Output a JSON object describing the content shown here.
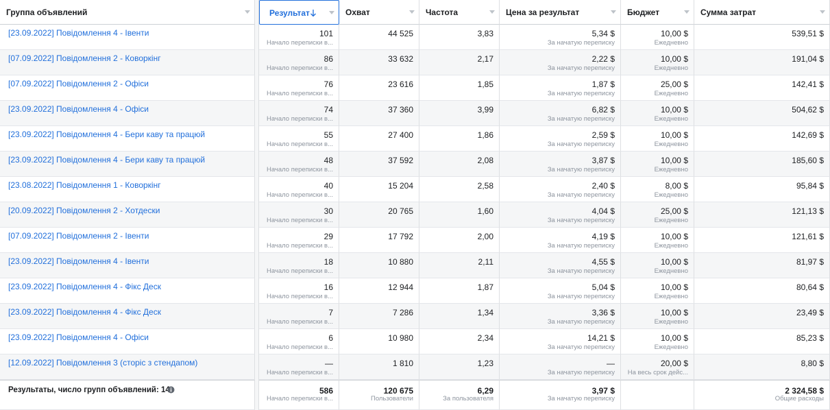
{
  "header": {
    "columns": [
      "Группа объявлений",
      "Результат",
      "Охват",
      "Частота",
      "Цена за результат",
      "Бюджет",
      "Сумма затрат"
    ]
  },
  "table": {
    "rows": [
      {
        "name": "[23.09.2022] Повідомлення 4 - Івенти",
        "result": {
          "main": "101",
          "sub": "Начало переписки в..."
        },
        "reach": "44 525",
        "frequency": "3,83",
        "cost": {
          "main": "5,34 $",
          "sub": "За начатую переписку"
        },
        "budget": {
          "main": "10,00 $",
          "sub": "Ежедневно"
        },
        "spend": "539,51 $"
      },
      {
        "name": "[07.09.2022] Повідомлення 2 - Коворкінг",
        "result": {
          "main": "86",
          "sub": "Начало переписки в..."
        },
        "reach": "33 632",
        "frequency": "2,17",
        "cost": {
          "main": "2,22 $",
          "sub": "За начатую переписку"
        },
        "budget": {
          "main": "10,00 $",
          "sub": "Ежедневно"
        },
        "spend": "191,04 $"
      },
      {
        "name": "[07.09.2022] Повідомлення 2 - Офіси",
        "result": {
          "main": "76",
          "sub": "Начало переписки в..."
        },
        "reach": "23 616",
        "frequency": "1,85",
        "cost": {
          "main": "1,87 $",
          "sub": "За начатую переписку"
        },
        "budget": {
          "main": "25,00 $",
          "sub": "Ежедневно"
        },
        "spend": "142,41 $"
      },
      {
        "name": "[23.09.2022] Повідомлення 4 - Офіси",
        "result": {
          "main": "74",
          "sub": "Начало переписки в..."
        },
        "reach": "37 360",
        "frequency": "3,99",
        "cost": {
          "main": "6,82 $",
          "sub": "За начатую переписку"
        },
        "budget": {
          "main": "10,00 $",
          "sub": "Ежедневно"
        },
        "spend": "504,62 $"
      },
      {
        "name": "[23.09.2022] Повідомлення 4 - Бери каву та працюй",
        "result": {
          "main": "55",
          "sub": "Начало переписки в..."
        },
        "reach": "27 400",
        "frequency": "1,86",
        "cost": {
          "main": "2,59 $",
          "sub": "За начатую переписку"
        },
        "budget": {
          "main": "10,00 $",
          "sub": "Ежедневно"
        },
        "spend": "142,69 $"
      },
      {
        "name": "[23.09.2022] Повідомлення 4 - Бери каву та працюй",
        "result": {
          "main": "48",
          "sub": "Начало переписки в..."
        },
        "reach": "37 592",
        "frequency": "2,08",
        "cost": {
          "main": "3,87 $",
          "sub": "За начатую переписку"
        },
        "budget": {
          "main": "10,00 $",
          "sub": "Ежедневно"
        },
        "spend": "185,60 $"
      },
      {
        "name": "[23.08.2022] Повідомлення 1 - Коворкінг",
        "result": {
          "main": "40",
          "sub": "Начало переписки в..."
        },
        "reach": "15 204",
        "frequency": "2,58",
        "cost": {
          "main": "2,40 $",
          "sub": "За начатую переписку"
        },
        "budget": {
          "main": "8,00 $",
          "sub": "Ежедневно"
        },
        "spend": "95,84 $"
      },
      {
        "name": "[20.09.2022] Повідомлення 2 - Хотдески",
        "result": {
          "main": "30",
          "sub": "Начало переписки в..."
        },
        "reach": "20 765",
        "frequency": "1,60",
        "cost": {
          "main": "4,04 $",
          "sub": "За начатую переписку"
        },
        "budget": {
          "main": "25,00 $",
          "sub": "Ежедневно"
        },
        "spend": "121,13 $"
      },
      {
        "name": "[07.09.2022] Повідомлення 2 - Івенти",
        "result": {
          "main": "29",
          "sub": "Начало переписки в..."
        },
        "reach": "17 792",
        "frequency": "2,00",
        "cost": {
          "main": "4,19 $",
          "sub": "За начатую переписку"
        },
        "budget": {
          "main": "10,00 $",
          "sub": "Ежедневно"
        },
        "spend": "121,61 $"
      },
      {
        "name": "[23.09.2022] Повідомлення 4 - Івенти",
        "result": {
          "main": "18",
          "sub": "Начало переписки в..."
        },
        "reach": "10 880",
        "frequency": "2,11",
        "cost": {
          "main": "4,55 $",
          "sub": "За начатую переписку"
        },
        "budget": {
          "main": "10,00 $",
          "sub": "Ежедневно"
        },
        "spend": "81,97 $"
      },
      {
        "name": "[23.09.2022] Повідомлення 4 - Фікс Деск",
        "result": {
          "main": "16",
          "sub": "Начало переписки в..."
        },
        "reach": "12 944",
        "frequency": "1,87",
        "cost": {
          "main": "5,04 $",
          "sub": "За начатую переписку"
        },
        "budget": {
          "main": "10,00 $",
          "sub": "Ежедневно"
        },
        "spend": "80,64 $"
      },
      {
        "name": "[23.09.2022] Повідомлення 4 - Фікс Деск",
        "result": {
          "main": "7",
          "sub": "Начало переписки в..."
        },
        "reach": "7 286",
        "frequency": "1,34",
        "cost": {
          "main": "3,36 $",
          "sub": "За начатую переписку"
        },
        "budget": {
          "main": "10,00 $",
          "sub": "Ежедневно"
        },
        "spend": "23,49 $"
      },
      {
        "name": "[23.09.2022] Повідомлення 4 - Офіси",
        "result": {
          "main": "6",
          "sub": "Начало переписки в..."
        },
        "reach": "10 980",
        "frequency": "2,34",
        "cost": {
          "main": "14,21 $",
          "sub": "За начатую переписку"
        },
        "budget": {
          "main": "10,00 $",
          "sub": "Ежедневно"
        },
        "spend": "85,23 $"
      },
      {
        "name": "[12.09.2022] Повідомлення 3 (сторіс з стендапом)",
        "result": {
          "main": "—",
          "sub": "Начало переписки в..."
        },
        "reach": "1 810",
        "frequency": "1,23",
        "cost": {
          "main": "—",
          "sub": "За начатую переписку"
        },
        "budget": {
          "main": "20,00 $",
          "sub": "На весь срок дейс..."
        },
        "spend": "8,80 $"
      }
    ],
    "footer": {
      "name": "Результаты, число групп объявлений: 14",
      "result": {
        "main": "586",
        "sub": "Начало переписки в..."
      },
      "reach": {
        "main": "120 675",
        "sub": "Пользователи"
      },
      "frequency": {
        "main": "6,29",
        "sub": "За пользователя"
      },
      "cost": {
        "main": "3,97 $",
        "sub": "За начатую переписку"
      },
      "spend": {
        "main": "2 324,58 $",
        "sub": "Общие расходы"
      }
    }
  }
}
